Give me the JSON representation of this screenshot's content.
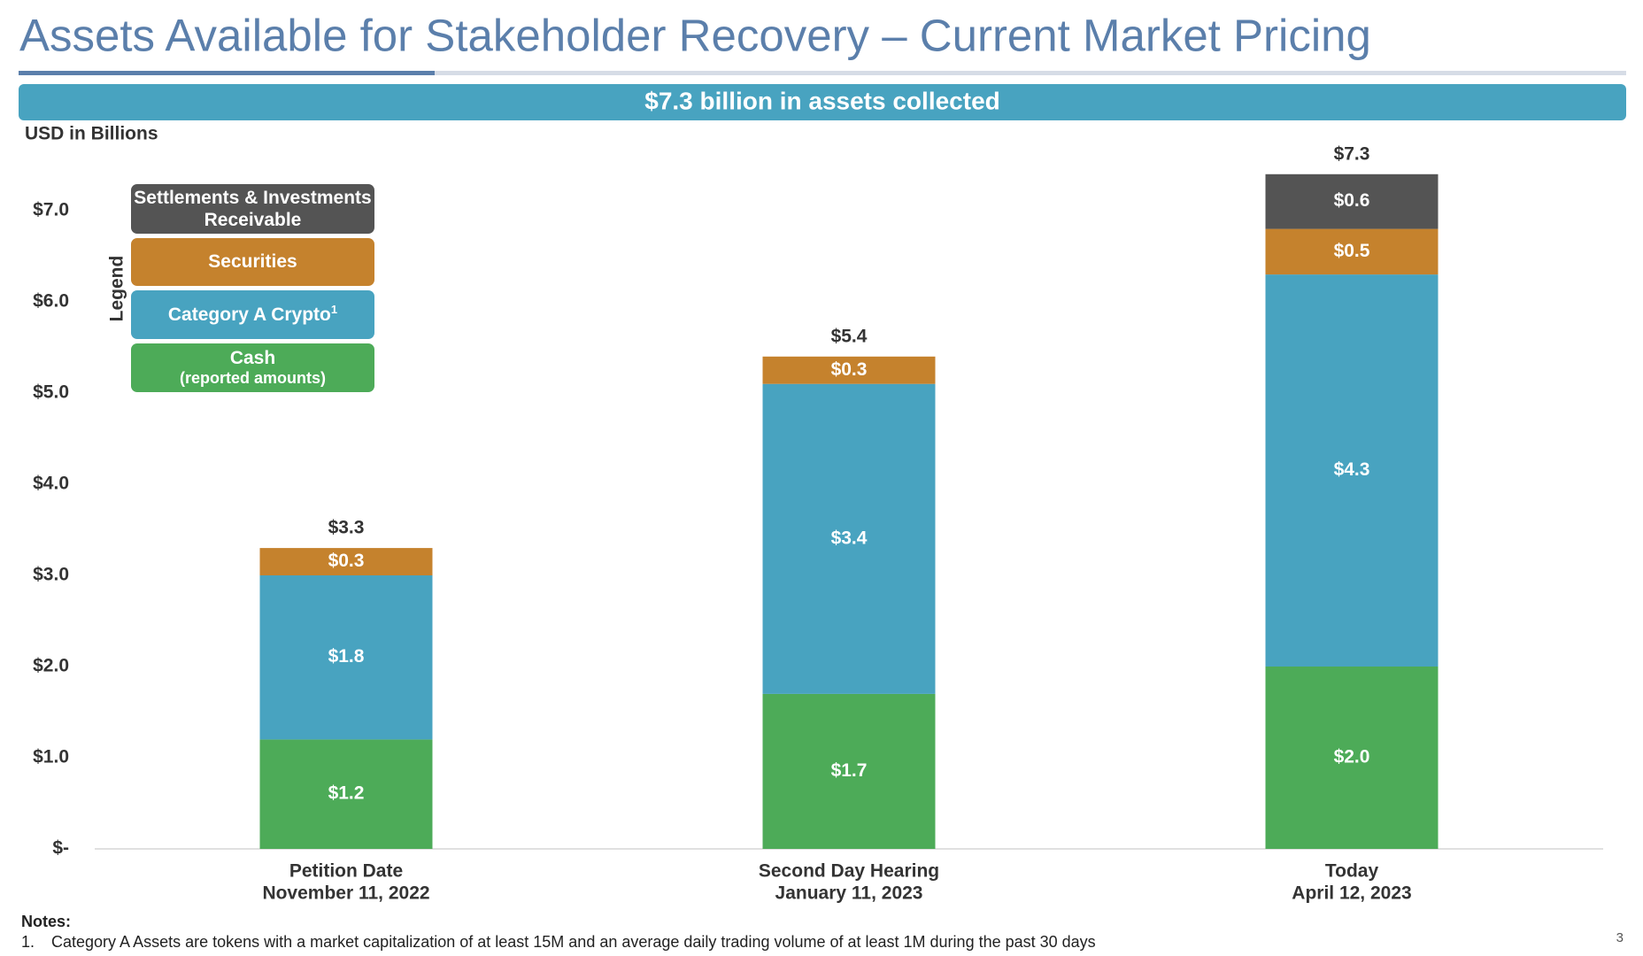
{
  "header": {
    "title": "Assets Available for Stakeholder Recovery – Current Market Pricing",
    "banner": "$7.3 billion in assets collected"
  },
  "chart_data": {
    "type": "stacked-bar",
    "y_label": "USD in Billions",
    "categories": [
      [
        "Petition Date",
        "November 11, 2022"
      ],
      [
        "Second Day Hearing",
        "January 11, 2023"
      ],
      [
        "Today",
        "April 12, 2023"
      ]
    ],
    "series": [
      {
        "name": "Cash",
        "name_note": "(reported amounts)",
        "color": "#4dab58",
        "values": [
          1.2,
          1.7,
          2.0
        ],
        "value_labels": [
          "$1.2",
          "$1.7",
          "$2.0"
        ]
      },
      {
        "name": "Category A Crypto",
        "name_footnote": "1",
        "color": "#48a3c0",
        "values": [
          1.8,
          3.4,
          4.3
        ],
        "value_labels": [
          "$1.8",
          "$3.4",
          "$4.3"
        ]
      },
      {
        "name": "Securities",
        "color": "#c5822d",
        "values": [
          0.3,
          0.3,
          0.5
        ],
        "value_labels": [
          "$0.3",
          "$0.3",
          "$0.5"
        ]
      },
      {
        "name": "Settlements & Investments Receivable",
        "color": "#545454",
        "values": [
          null,
          null,
          0.6
        ],
        "value_labels": [
          null,
          null,
          "$0.6"
        ]
      }
    ],
    "totals": [
      3.3,
      5.4,
      7.3
    ],
    "total_labels": [
      "$3.3",
      "$5.4",
      "$7.3"
    ],
    "ylim": [
      0,
      7.5
    ],
    "yticks": [
      {
        "value": 0,
        "label": "$-"
      },
      {
        "value": 1,
        "label": "$1.0"
      },
      {
        "value": 2,
        "label": "$2.0"
      },
      {
        "value": 3,
        "label": "$3.0"
      },
      {
        "value": 4,
        "label": "$4.0"
      },
      {
        "value": 5,
        "label": "$5.0"
      },
      {
        "value": 6,
        "label": "$6.0"
      },
      {
        "value": 7,
        "label": "$7.0"
      }
    ],
    "legend_title": "Legend",
    "legend_position": "upper left"
  },
  "notes": {
    "title": "Notes:",
    "items": [
      {
        "number": "1.",
        "text": "Category A Assets are tokens with a market capitalization of at least 15M and an average daily trading volume of at least 1M during the past 30 days"
      }
    ]
  },
  "page_number": "3"
}
